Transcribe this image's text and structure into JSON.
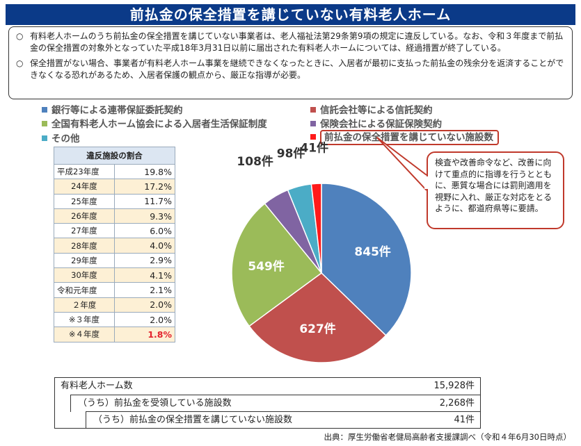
{
  "title": "前払金の保全措置を講じていない有料老人ホーム",
  "notices": [
    {
      "mark": "○",
      "text": "有料老人ホームのうち前払金の保全措置を講じていない事業者は、老人福祉法第29条第9項の規定に違反している。なお、令和３年度まで前払金の保全措置の対象外となっていた平成18年3月31日以前に届出された有料老人ホームについては、経過措置が終了している。"
    },
    {
      "mark": "○",
      "text": "保全措置がない場合、事業者が有料老人ホーム事業を継続できなくなったときに、入居者が最初に支払った前払金の残余分を返済することができなくなる恐れがあるため、入居者保護の観点から、厳正な指導が必要。"
    }
  ],
  "legend": [
    {
      "label": "銀行等による連帯保証委託契約",
      "color": "#4f81bd"
    },
    {
      "label": "信託会社等による信託契約",
      "color": "#c0504d"
    },
    {
      "label": "全国有料老人ホーム協会による入居者生活保証制度",
      "color": "#9bbb59"
    },
    {
      "label": "保険会社による保証保険契約",
      "color": "#8064a2"
    },
    {
      "label": "その他",
      "color": "#4bacc6"
    },
    {
      "label": "前払金の保全措置を講じていない施設数",
      "color": "#ff1a1a"
    }
  ],
  "ratio_table": {
    "header": "違反施設の割合",
    "rows": [
      {
        "year": "平成23年度",
        "value": "19.8%"
      },
      {
        "year": "24年度",
        "value": "17.2%"
      },
      {
        "year": "25年度",
        "value": "11.7%"
      },
      {
        "year": "26年度",
        "value": "9.3%"
      },
      {
        "year": "27年度",
        "value": "6.0%"
      },
      {
        "year": "28年度",
        "value": "4.0%"
      },
      {
        "year": "29年度",
        "value": "2.9%"
      },
      {
        "year": "30年度",
        "value": "4.1%"
      },
      {
        "year": "令和元年度",
        "value": "2.1%"
      },
      {
        "year": "２年度",
        "value": "2.0%"
      },
      {
        "year": "※３年度",
        "value": "2.0%"
      },
      {
        "year": "※４年度",
        "value": "1.8%"
      }
    ]
  },
  "callout": "検査や改善命令など、改善に向けて重点的に指導を行うとともに、悪質な場合には罰則適用を視野に入れ、厳正な対応をとるように、都道府県等に要請。",
  "chart_data": {
    "type": "pie",
    "start": "top, clockwise",
    "slices": [
      {
        "name": "銀行等による連帯保証委託契約",
        "value": 845,
        "label": "845件",
        "color": "#4f81bd"
      },
      {
        "name": "信託会社等による信託契約",
        "value": 627,
        "label": "627件",
        "color": "#c0504d"
      },
      {
        "name": "全国有料老人ホーム協会による入居者生活保証制度",
        "value": 549,
        "label": "549件",
        "color": "#9bbb59"
      },
      {
        "name": "保険会社による保証保険契約",
        "value": 108,
        "label": "108件",
        "color": "#8064a2"
      },
      {
        "name": "その他",
        "value": 98,
        "label": "98件",
        "color": "#4bacc6"
      },
      {
        "name": "前払金の保全措置を講じていない施設数",
        "value": 41,
        "label": "41件",
        "color": "#ff1a1a"
      }
    ]
  },
  "summary": [
    {
      "label": "有料老人ホーム数",
      "value": "15,928件"
    },
    {
      "label": "（うち）前払金を受領している施設数",
      "value": "2,268件"
    },
    {
      "label": "（うち）前払金の保全措置を講じていない施設数",
      "value": "41件"
    }
  ],
  "source": "出典：厚生労働省老健局高齢者支援課調べ（令和４年6月30日時点）"
}
